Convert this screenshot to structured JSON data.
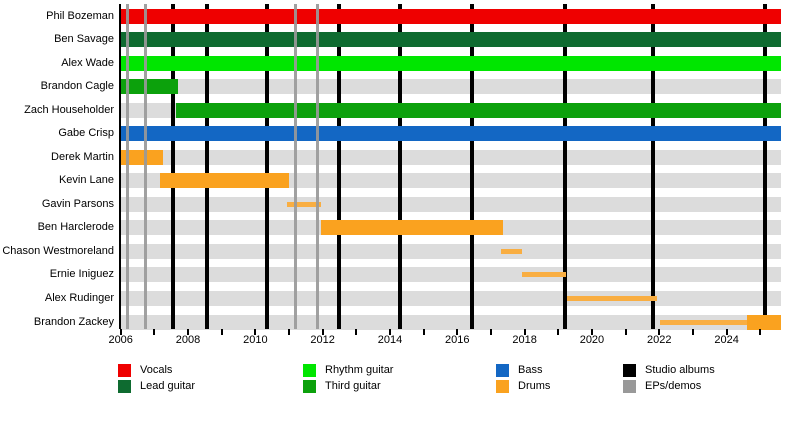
{
  "chart_data": {
    "type": "bar",
    "subtype": "gantt-band-membership-timeline",
    "title": "",
    "x_axis": {
      "min": 2006,
      "max": 2025.62,
      "tick_interval_years": 1,
      "label_years": [
        2006,
        2008,
        2010,
        2012,
        2014,
        2016,
        2018,
        2020,
        2022,
        2024
      ]
    },
    "members": [
      {
        "name": "Phil Bozeman",
        "role": "Vocals",
        "bars": [
          {
            "start": 2006.0,
            "end": 2025.62,
            "color_key": "vocals",
            "style": "full"
          }
        ]
      },
      {
        "name": "Ben Savage",
        "role": "Lead guitar",
        "bars": [
          {
            "start": 2006.0,
            "end": 2025.62,
            "color_key": "lead_guitar",
            "style": "full"
          }
        ]
      },
      {
        "name": "Alex Wade",
        "role": "Rhythm guitar",
        "bars": [
          {
            "start": 2006.0,
            "end": 2025.62,
            "color_key": "rhythm_guitar",
            "style": "full"
          }
        ]
      },
      {
        "name": "Brandon Cagle",
        "role": "Third guitar",
        "bars": [
          {
            "start": 2006.0,
            "end": 2007.7,
            "color_key": "third_guitar",
            "style": "full"
          }
        ]
      },
      {
        "name": "Zach Householder",
        "role": "Third guitar",
        "bars": [
          {
            "start": 2007.65,
            "end": 2025.62,
            "color_key": "third_guitar",
            "style": "full"
          }
        ]
      },
      {
        "name": "Gabe Crisp",
        "role": "Bass",
        "bars": [
          {
            "start": 2006.0,
            "end": 2025.62,
            "color_key": "bass",
            "style": "full"
          }
        ]
      },
      {
        "name": "Derek Martin",
        "role": "Drums",
        "bars": [
          {
            "start": 2006.0,
            "end": 2007.25,
            "color_key": "drums",
            "style": "full"
          }
        ]
      },
      {
        "name": "Kevin Lane",
        "role": "Drums",
        "bars": [
          {
            "start": 2007.18,
            "end": 2011.0,
            "color_key": "drums",
            "style": "full"
          }
        ]
      },
      {
        "name": "Gavin Parsons",
        "role": "Drums",
        "bars": [
          {
            "start": 2010.95,
            "end": 2011.95,
            "color_key": "drums",
            "style": "thin"
          }
        ]
      },
      {
        "name": "Ben Harclerode",
        "role": "Drums",
        "bars": [
          {
            "start": 2011.95,
            "end": 2017.35,
            "color_key": "drums",
            "style": "full"
          }
        ]
      },
      {
        "name": "Chason Westmoreland",
        "role": "Drums",
        "bars": [
          {
            "start": 2017.3,
            "end": 2017.92,
            "color_key": "drums",
            "style": "thin"
          }
        ]
      },
      {
        "name": "Ernie Iniguez",
        "role": "Drums",
        "bars": [
          {
            "start": 2017.92,
            "end": 2019.23,
            "color_key": "drums",
            "style": "thin"
          }
        ]
      },
      {
        "name": "Alex Rudinger",
        "role": "Drums",
        "bars": [
          {
            "start": 2019.26,
            "end": 2021.92,
            "color_key": "drums",
            "style": "thin"
          }
        ]
      },
      {
        "name": "Brandon Zackey",
        "role": "Drums",
        "bars": [
          {
            "start": 2022.02,
            "end": 2024.62,
            "color_key": "drums",
            "style": "thin"
          },
          {
            "start": 2024.62,
            "end": 2025.62,
            "color_key": "drums",
            "style": "full"
          }
        ]
      }
    ],
    "events": {
      "studio_albums": [
        2007.55,
        2008.55,
        2010.35,
        2012.5,
        2014.3,
        2016.45,
        2019.2,
        2021.8,
        2025.15
      ],
      "eps_demos": [
        2006.2,
        2006.75,
        2011.2,
        2011.85
      ]
    },
    "legend": [
      {
        "label": "Vocals",
        "color_key": "vocals"
      },
      {
        "label": "Lead guitar",
        "color_key": "lead_guitar"
      },
      {
        "label": "Rhythm guitar",
        "color_key": "rhythm_guitar"
      },
      {
        "label": "Third guitar",
        "color_key": "third_guitar"
      },
      {
        "label": "Bass",
        "color_key": "bass"
      },
      {
        "label": "Drums",
        "color_key": "drums"
      },
      {
        "label": "Studio albums",
        "color_key": "studio_albums"
      },
      {
        "label": "EPs/demos",
        "color_key": "eps_demos"
      }
    ],
    "colors": {
      "vocals": "#ef0000",
      "lead_guitar": "#0e6b30",
      "rhythm_guitar": "#00e600",
      "third_guitar": "#0ca10c",
      "bass": "#1367c4",
      "drums": "#faa21f",
      "drums_touring": "#f9ae42",
      "studio_albums": "#000000",
      "eps_demos": "#999999",
      "row_band": "#dcdcdc"
    }
  }
}
